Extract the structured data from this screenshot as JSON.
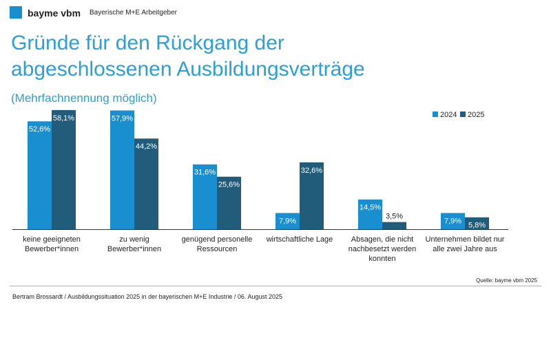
{
  "header": {
    "brand": "bayme vbm",
    "org": "Bayerische M+E Arbeitgeber"
  },
  "chart_data": {
    "type": "bar",
    "title": "Gründe für den Rückgang der abgeschlossenen Ausbildungsverträge",
    "subtitle": "(Mehrfachnennung möglich)",
    "categories": [
      "keine geeigneten\nBewerber*innen",
      "zu wenig Bewerber*innen",
      "genügend personelle\nRessourcen",
      "wirtschaftliche Lage",
      "Absagen, die nicht\nnachbesetzt werden\nkonnten",
      "Unternehmen bildet nur\nalle zwei Jahre aus"
    ],
    "series": [
      {
        "name": "2024",
        "color": "#1a8fd0",
        "values": [
          52.6,
          57.9,
          31.6,
          7.9,
          14.5,
          7.9
        ],
        "value_labels": [
          "52,6%",
          "57,9%",
          "31,6%",
          "7,9%",
          "14,5%",
          "7,9%"
        ]
      },
      {
        "name": "2025",
        "color": "#215c7b",
        "values": [
          58.1,
          44.2,
          25.6,
          32.6,
          3.5,
          5.8
        ],
        "value_labels": [
          "58,1%",
          "44,2%",
          "25,6%",
          "32,6%",
          "3,5%",
          "5,8%"
        ]
      }
    ],
    "legend": "top-right",
    "source": "Quelle: bayme vbm 2025"
  },
  "footer": "Bertram Brossardt / Ausbildungssituation 2025 in der bayerischen M+E Industrie / 06. August 2025"
}
